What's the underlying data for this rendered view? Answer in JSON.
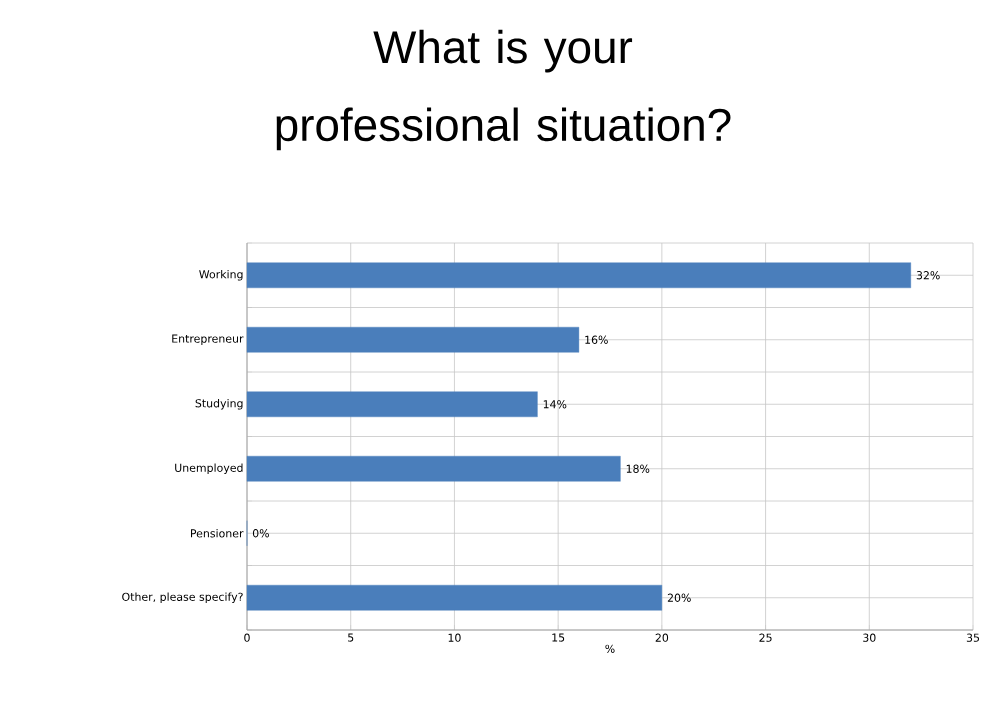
{
  "chart_data": {
    "type": "bar",
    "orientation": "horizontal",
    "title": "What is your professional situation?",
    "categories": [
      "Working",
      "Entrepreneur",
      "Studying",
      "Unemployed",
      "Pensioner",
      "Other, please specify?"
    ],
    "values": [
      32,
      16,
      14,
      18,
      0,
      20
    ],
    "value_labels": [
      "32%",
      "16%",
      "14%",
      "18%",
      "0%",
      "20%"
    ],
    "color": "#4a7ebb",
    "xlabel": "%",
    "xlim": [
      0,
      35
    ],
    "xticks": [
      0,
      5,
      10,
      15,
      20,
      25,
      30,
      35
    ],
    "grid": true
  }
}
